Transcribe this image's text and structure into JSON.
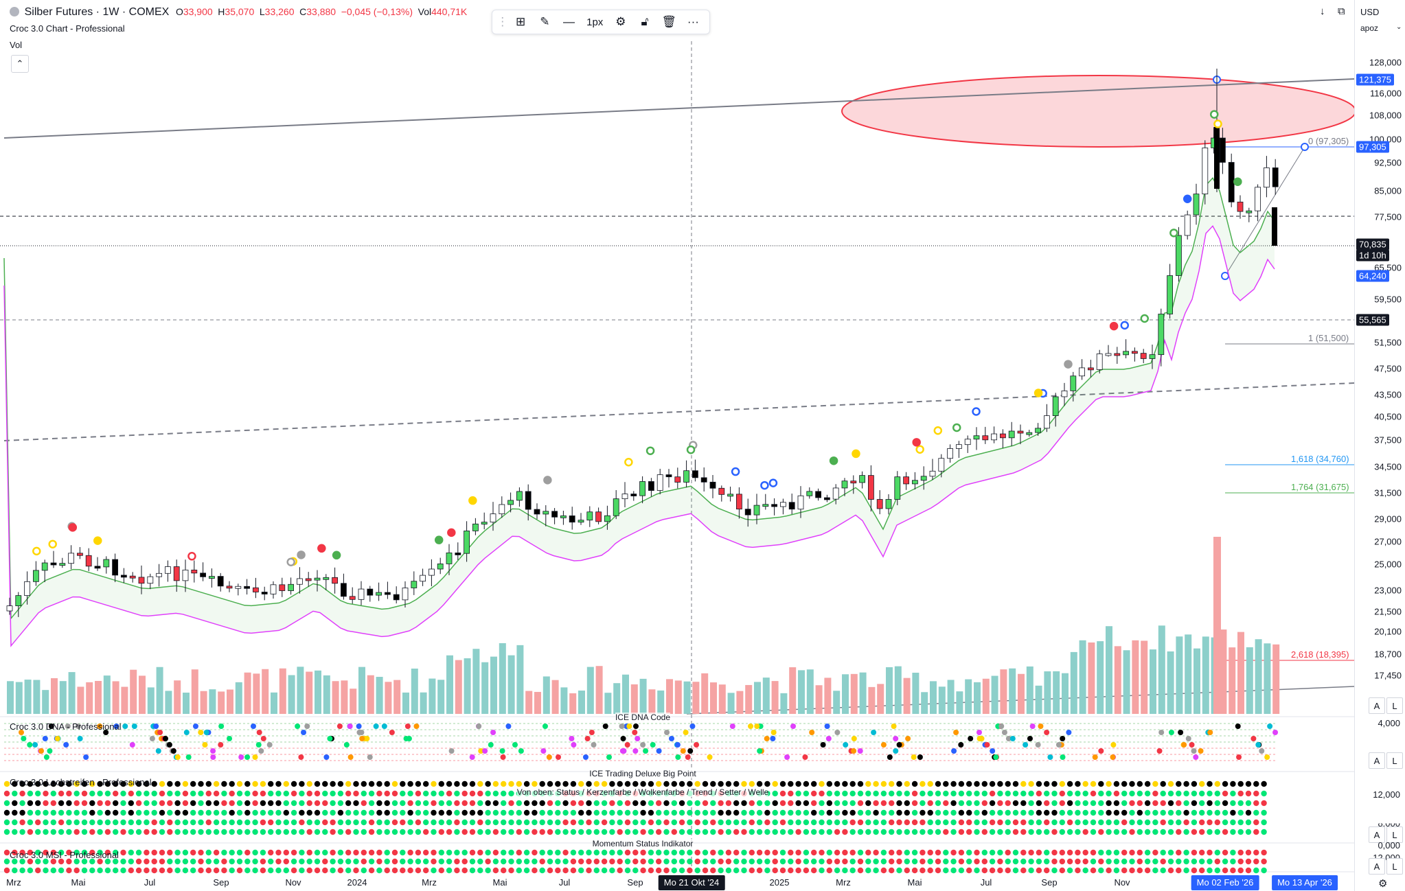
{
  "legend": {
    "symbol": "Silber Futures · 1W · COMEX",
    "open_label": "O",
    "open": "33,900",
    "high_label": "H",
    "high": "35,070",
    "low_label": "L",
    "low": "33,260",
    "close_label": "C",
    "close": "33,880",
    "change": "−0,045 (−0,13%)",
    "vol_label": "Vol",
    "vol": "440,71K",
    "indicator_1": "Croc 3.0 Chart - Professional",
    "indicator_2": "Vol"
  },
  "toolbar": {
    "width_label": "1px"
  },
  "price_axis": {
    "currency": "USD",
    "mode": "apoz",
    "ticks": [
      "128,000",
      "116,000",
      "108,000",
      "100,000",
      "92,500",
      "85,000",
      "77,500",
      "65,500",
      "59,500",
      "51,500",
      "47,500",
      "43,500",
      "40,500",
      "37,500",
      "34,500",
      "31,500",
      "29,000",
      "27,000",
      "25,000",
      "23,000",
      "21,500",
      "20,100",
      "18,700",
      "17,450"
    ],
    "tags": [
      {
        "text": "121,375",
        "color": "#2962ff"
      },
      {
        "text": "97,305",
        "color": "#2962ff"
      },
      {
        "text": "70,835",
        "color": "#131722"
      },
      {
        "text": "1d 10h",
        "color": "#131722"
      },
      {
        "text": "64,240",
        "color": "#2962ff"
      },
      {
        "text": "55,565",
        "color": "#131722"
      }
    ]
  },
  "fib_levels": [
    {
      "text": "0 (97,305)",
      "color": "#787b86"
    },
    {
      "text": "1 (51,500)",
      "color": "#787b86"
    },
    {
      "text": "1,618 (34,760)",
      "color": "#2196f3"
    },
    {
      "text": "1,764 (31,675)",
      "color": "#4caf50"
    },
    {
      "text": "2,618 (18,395)",
      "color": "#f23645"
    }
  ],
  "panes": {
    "dna": {
      "title": "Croc 3.0 DNA - Professional",
      "center": "ICE DNA Code",
      "axis": "4,000"
    },
    "lochstreifen": {
      "title": "Croc 3.0 Lochstreifen - Professional",
      "center_1": "ICE Trading Deluxe Big Point",
      "center_2": "Von oben: Status / Kerzenfarbe / Wolkenfarbe / Trend / Setter / Welle",
      "axis_1": "12,000",
      "axis_2": "8,000"
    },
    "msi": {
      "title": "Croc 3.0 MSI - Professional",
      "center": "Momentum Status Indikator",
      "axis_1": "0,000",
      "axis_2": "-12,000"
    }
  },
  "time_axis": {
    "labels": [
      "Mrz",
      "Mai",
      "Jul",
      "Sep",
      "Nov",
      "2024",
      "Mrz",
      "Mai",
      "Jul",
      "Sep",
      "2025",
      "Mrz",
      "Mai",
      "Jul",
      "Sep",
      "Nov"
    ],
    "cursor_date": "Mo 21 Okt '24",
    "range_start": "Mo 02 Feb '26",
    "range_end": "Mo 13 Apr '26"
  },
  "buttons": {
    "auto": "A",
    "log": "L"
  }
}
